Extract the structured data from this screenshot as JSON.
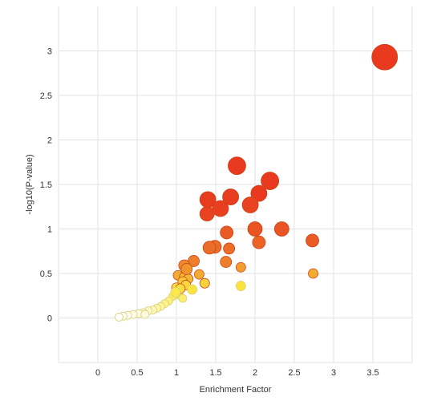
{
  "chart_data": {
    "type": "scatter",
    "title": "",
    "xlabel": "Enrichment Factor",
    "ylabel": "-log10(P-value)",
    "xlim": [
      -0.5,
      4.0
    ],
    "ylim": [
      -0.5,
      3.5
    ],
    "grid": true,
    "legend": "none",
    "color_scale": [
      "#ffffff",
      "#fff176",
      "#fbc02d",
      "#f57c00",
      "#e53935"
    ],
    "x_ticks": [
      {
        "value": 0,
        "label": "0"
      },
      {
        "value": 0.5,
        "label": "0.5"
      },
      {
        "value": 1,
        "label": "1"
      },
      {
        "value": 1.5,
        "label": "1.5"
      },
      {
        "value": 2,
        "label": "2"
      },
      {
        "value": 2.5,
        "label": "2.5"
      },
      {
        "value": 3,
        "label": "3"
      },
      {
        "value": 3.5,
        "label": "3.5"
      }
    ],
    "y_ticks": [
      {
        "value": 0,
        "label": "0"
      },
      {
        "value": 0.5,
        "label": "0.5"
      },
      {
        "value": 1,
        "label": "1"
      },
      {
        "value": 1.5,
        "label": "1.5"
      },
      {
        "value": 2,
        "label": "2"
      },
      {
        "value": 2.5,
        "label": "2.5"
      },
      {
        "value": 3,
        "label": "3"
      }
    ],
    "points": [
      {
        "x": 3.65,
        "y": 2.93,
        "size": 16,
        "color": "#e93a1f"
      },
      {
        "x": 1.77,
        "y": 1.71,
        "size": 11,
        "color": "#e93a1f"
      },
      {
        "x": 2.19,
        "y": 1.54,
        "size": 11,
        "color": "#e93a1f"
      },
      {
        "x": 2.05,
        "y": 1.4,
        "size": 10,
        "color": "#e93a1f"
      },
      {
        "x": 1.69,
        "y": 1.36,
        "size": 10,
        "color": "#e83c1f"
      },
      {
        "x": 1.4,
        "y": 1.33,
        "size": 10,
        "color": "#e83c1f"
      },
      {
        "x": 1.56,
        "y": 1.23,
        "size": 10,
        "color": "#e93f20"
      },
      {
        "x": 1.94,
        "y": 1.27,
        "size": 10,
        "color": "#e94321"
      },
      {
        "x": 1.39,
        "y": 1.17,
        "size": 9,
        "color": "#e94321"
      },
      {
        "x": 2.34,
        "y": 1.0,
        "size": 9,
        "color": "#ea5322"
      },
      {
        "x": 2.73,
        "y": 0.87,
        "size": 8,
        "color": "#ea5a24"
      },
      {
        "x": 2.0,
        "y": 1.0,
        "size": 9,
        "color": "#ea5322"
      },
      {
        "x": 1.64,
        "y": 0.96,
        "size": 8,
        "color": "#ea5a24"
      },
      {
        "x": 2.05,
        "y": 0.85,
        "size": 8,
        "color": "#ec6326"
      },
      {
        "x": 1.49,
        "y": 0.8,
        "size": 8,
        "color": "#ec6d28"
      },
      {
        "x": 1.42,
        "y": 0.79,
        "size": 8,
        "color": "#ec6d28"
      },
      {
        "x": 1.67,
        "y": 0.78,
        "size": 7,
        "color": "#ec6d28"
      },
      {
        "x": 1.22,
        "y": 0.64,
        "size": 7,
        "color": "#ee7f2a"
      },
      {
        "x": 1.63,
        "y": 0.63,
        "size": 7,
        "color": "#ee7f2a"
      },
      {
        "x": 1.1,
        "y": 0.59,
        "size": 7,
        "color": "#ef8a2c"
      },
      {
        "x": 1.13,
        "y": 0.55,
        "size": 7,
        "color": "#f0952d"
      },
      {
        "x": 1.82,
        "y": 0.57,
        "size": 6,
        "color": "#f19d2f"
      },
      {
        "x": 2.74,
        "y": 0.5,
        "size": 6,
        "color": "#f3ab31"
      },
      {
        "x": 1.29,
        "y": 0.49,
        "size": 6,
        "color": "#f3ab31"
      },
      {
        "x": 1.02,
        "y": 0.48,
        "size": 6,
        "color": "#f3ab31"
      },
      {
        "x": 1.1,
        "y": 0.46,
        "size": 6,
        "color": "#f4b934"
      },
      {
        "x": 1.15,
        "y": 0.44,
        "size": 6,
        "color": "#f4b934"
      },
      {
        "x": 1.08,
        "y": 0.41,
        "size": 6,
        "color": "#f5c637"
      },
      {
        "x": 1.36,
        "y": 0.39,
        "size": 6,
        "color": "#f7d23b"
      },
      {
        "x": 1.82,
        "y": 0.36,
        "size": 6,
        "color": "#fbe43f"
      },
      {
        "x": 1.12,
        "y": 0.37,
        "size": 6,
        "color": "#f8d83c"
      },
      {
        "x": 1.0,
        "y": 0.34,
        "size": 6,
        "color": "#f9de3e"
      },
      {
        "x": 1.05,
        "y": 0.33,
        "size": 6,
        "color": "#f9de3e"
      },
      {
        "x": 1.2,
        "y": 0.32,
        "size": 6,
        "color": "#fbe43f"
      },
      {
        "x": 0.99,
        "y": 0.29,
        "size": 6,
        "color": "#fbe84a"
      },
      {
        "x": 1.03,
        "y": 0.26,
        "size": 5,
        "color": "#fbe84a"
      },
      {
        "x": 0.95,
        "y": 0.24,
        "size": 5,
        "color": "#fcec61"
      },
      {
        "x": 1.08,
        "y": 0.22,
        "size": 5,
        "color": "#fcef6b"
      },
      {
        "x": 0.9,
        "y": 0.19,
        "size": 5,
        "color": "#fcf07a"
      },
      {
        "x": 0.85,
        "y": 0.16,
        "size": 5,
        "color": "#fdf38a"
      },
      {
        "x": 0.8,
        "y": 0.13,
        "size": 5,
        "color": "#fdf59a"
      },
      {
        "x": 0.75,
        "y": 0.11,
        "size": 5,
        "color": "#fef7ab"
      },
      {
        "x": 0.7,
        "y": 0.09,
        "size": 5,
        "color": "#fef8b9"
      },
      {
        "x": 0.64,
        "y": 0.08,
        "size": 5,
        "color": "#fef9c6"
      },
      {
        "x": 0.58,
        "y": 0.06,
        "size": 5,
        "color": "#fffad4"
      },
      {
        "x": 0.52,
        "y": 0.05,
        "size": 5,
        "color": "#fffbe0"
      },
      {
        "x": 0.6,
        "y": 0.04,
        "size": 5,
        "color": "#fffbe0"
      },
      {
        "x": 0.45,
        "y": 0.04,
        "size": 5,
        "color": "#fffce8"
      },
      {
        "x": 0.38,
        "y": 0.03,
        "size": 5,
        "color": "#fffdef"
      },
      {
        "x": 0.32,
        "y": 0.02,
        "size": 5,
        "color": "#fffef6"
      },
      {
        "x": 0.27,
        "y": 0.01,
        "size": 5,
        "color": "#fffffb"
      }
    ]
  }
}
